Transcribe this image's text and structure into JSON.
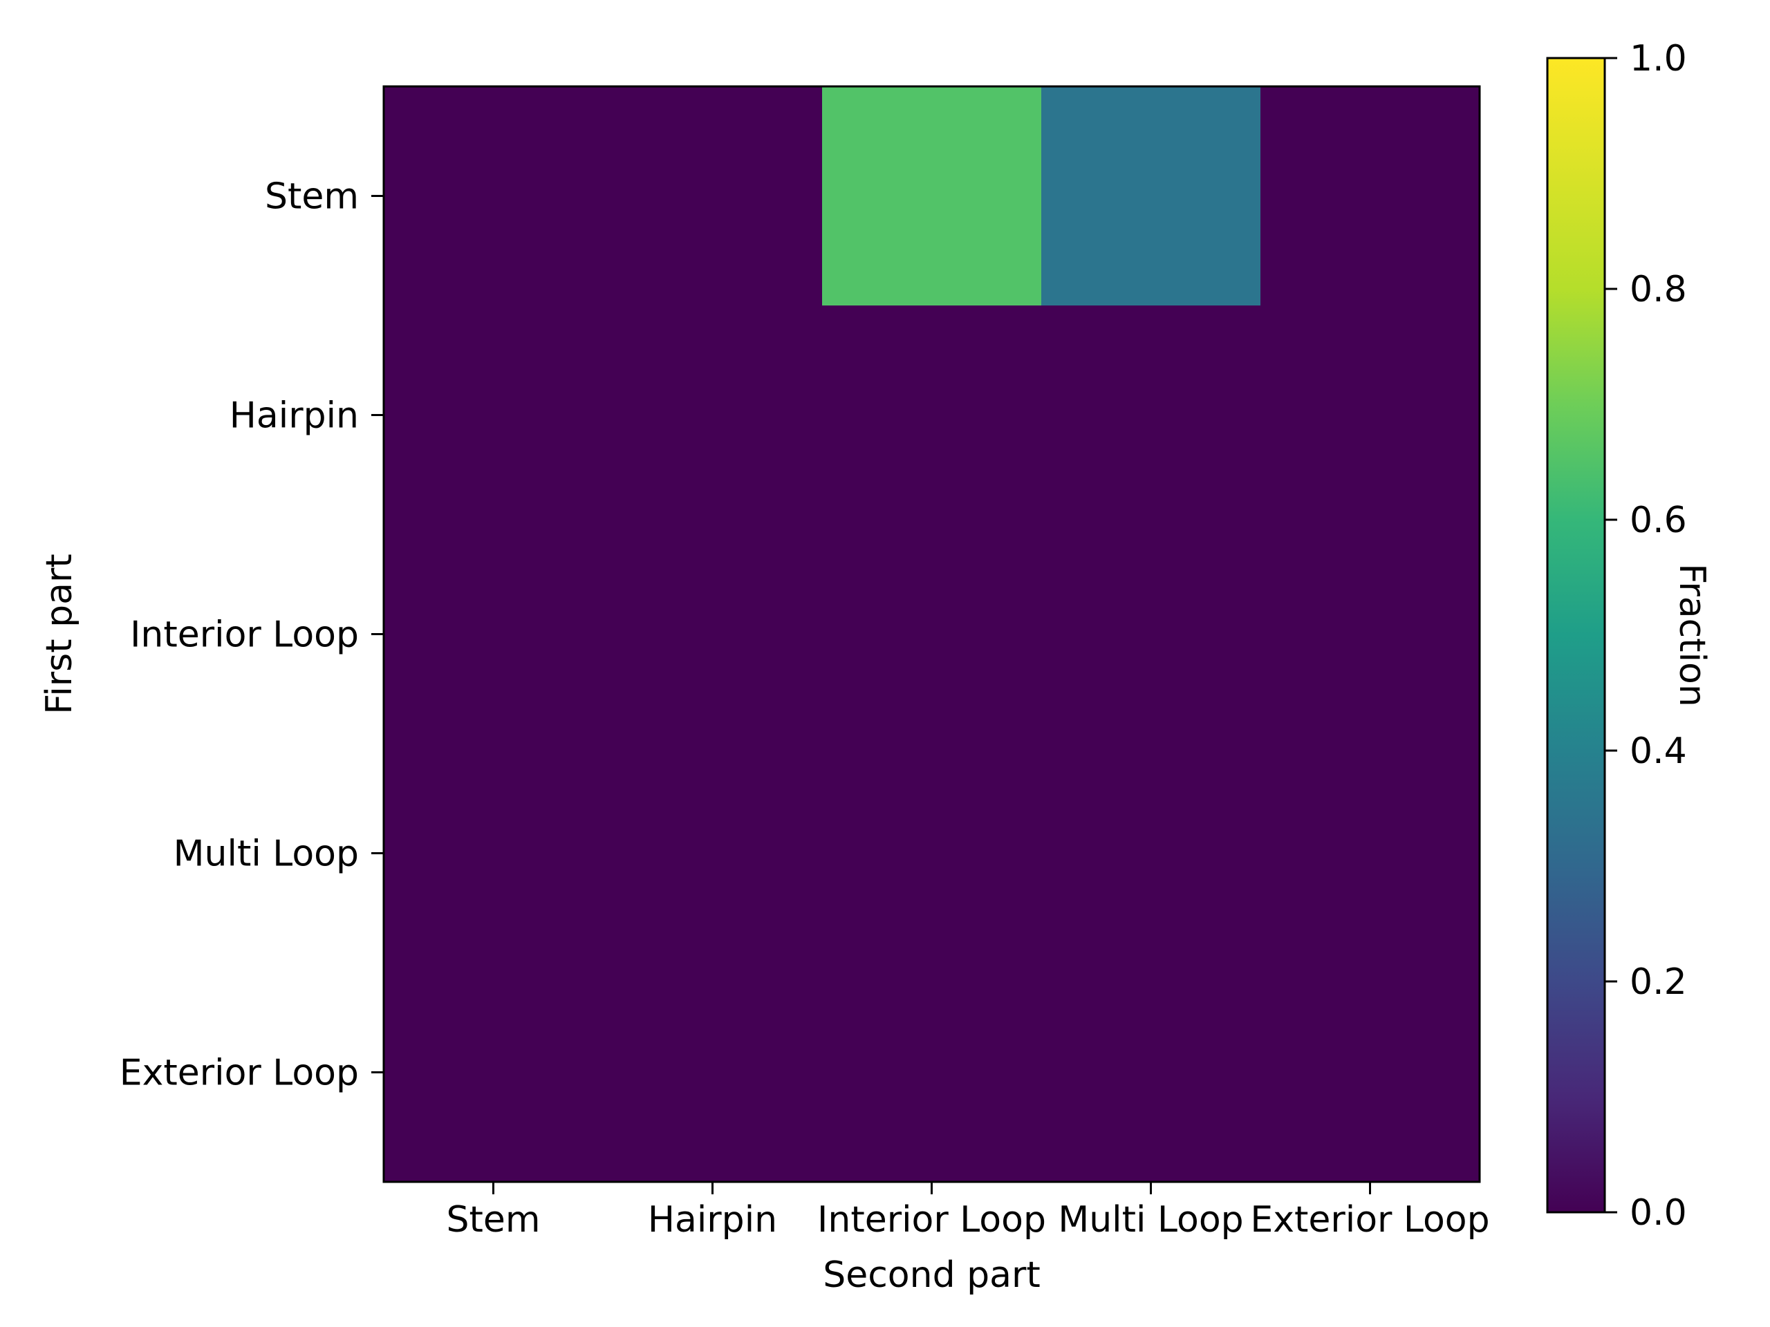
{
  "chart_data": {
    "type": "heatmap",
    "xlabel": "Second part",
    "ylabel": "First part",
    "x_categories": [
      "Stem",
      "Hairpin",
      "Interior Loop",
      "Multi Loop",
      "Exterior Loop"
    ],
    "y_categories": [
      "Stem",
      "Hairpin",
      "Interior Loop",
      "Multi Loop",
      "Exterior Loop"
    ],
    "values": [
      [
        0.0,
        0.0,
        0.65,
        0.35,
        0.0
      ],
      [
        0.0,
        0.0,
        0.0,
        0.0,
        0.0
      ],
      [
        0.0,
        0.0,
        0.0,
        0.0,
        0.0
      ],
      [
        0.0,
        0.0,
        0.0,
        0.0,
        0.0
      ],
      [
        0.0,
        0.0,
        0.0,
        0.0,
        0.0
      ]
    ],
    "colorbar": {
      "label": "Fraction",
      "range": [
        0.0,
        1.0
      ],
      "ticks": [
        0.0,
        0.2,
        0.4,
        0.6,
        0.8,
        1.0
      ],
      "tick_labels": [
        "0.0",
        "0.2",
        "0.4",
        "0.6",
        "0.8",
        "1.0"
      ],
      "colormap": "viridis"
    },
    "grid": false
  }
}
